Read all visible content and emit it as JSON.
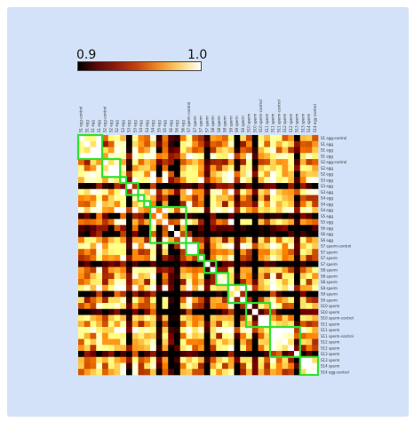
{
  "chart_data": {
    "type": "heatmap",
    "colorbar": {
      "min_label": "0.9",
      "max_label": "1.0",
      "vmin": 0.9,
      "vmax": 1.0,
      "colormap": "afmhot"
    },
    "n": 40,
    "row_labels": [
      "S1 egg-control",
      "S1 egg",
      "S1 egg",
      "S1 egg",
      "S2 egg-control",
      "S2 egg",
      "S2 egg",
      "S3 egg",
      "S3 egg",
      "S3 egg",
      "S4 egg",
      "S4 egg",
      "S4 egg",
      "S5 egg",
      "S5 egg",
      "S6 egg",
      "S6 egg",
      "S6 egg",
      "S7 sperm-control",
      "S7 sperm",
      "S7 sperm",
      "S7 sperm",
      "S8 sperm",
      "S8 sperm",
      "S8 sperm",
      "S9 sperm",
      "S9 sperm",
      "S9 sperm",
      "S10 sperm",
      "S10 sperm",
      "S10 sperm-control",
      "S11 sperm",
      "S11 sperm",
      "S11 sperm-control",
      "S12 sperm",
      "S12 sperm",
      "S13 sperm",
      "S13 sperm",
      "S14 sperm",
      "S14 egg-control"
    ],
    "highlight_blocks": [
      [
        0,
        3
      ],
      [
        4,
        6
      ],
      [
        7,
        7
      ],
      [
        8,
        9
      ],
      [
        10,
        10
      ],
      [
        11,
        11
      ],
      [
        12,
        17
      ],
      [
        18,
        19
      ],
      [
        20,
        20
      ],
      [
        21,
        22
      ],
      [
        23,
        24
      ],
      [
        25,
        27
      ],
      [
        28,
        31
      ],
      [
        32,
        36
      ],
      [
        37,
        39
      ]
    ],
    "highlight_color": "#2fe02f"
  }
}
